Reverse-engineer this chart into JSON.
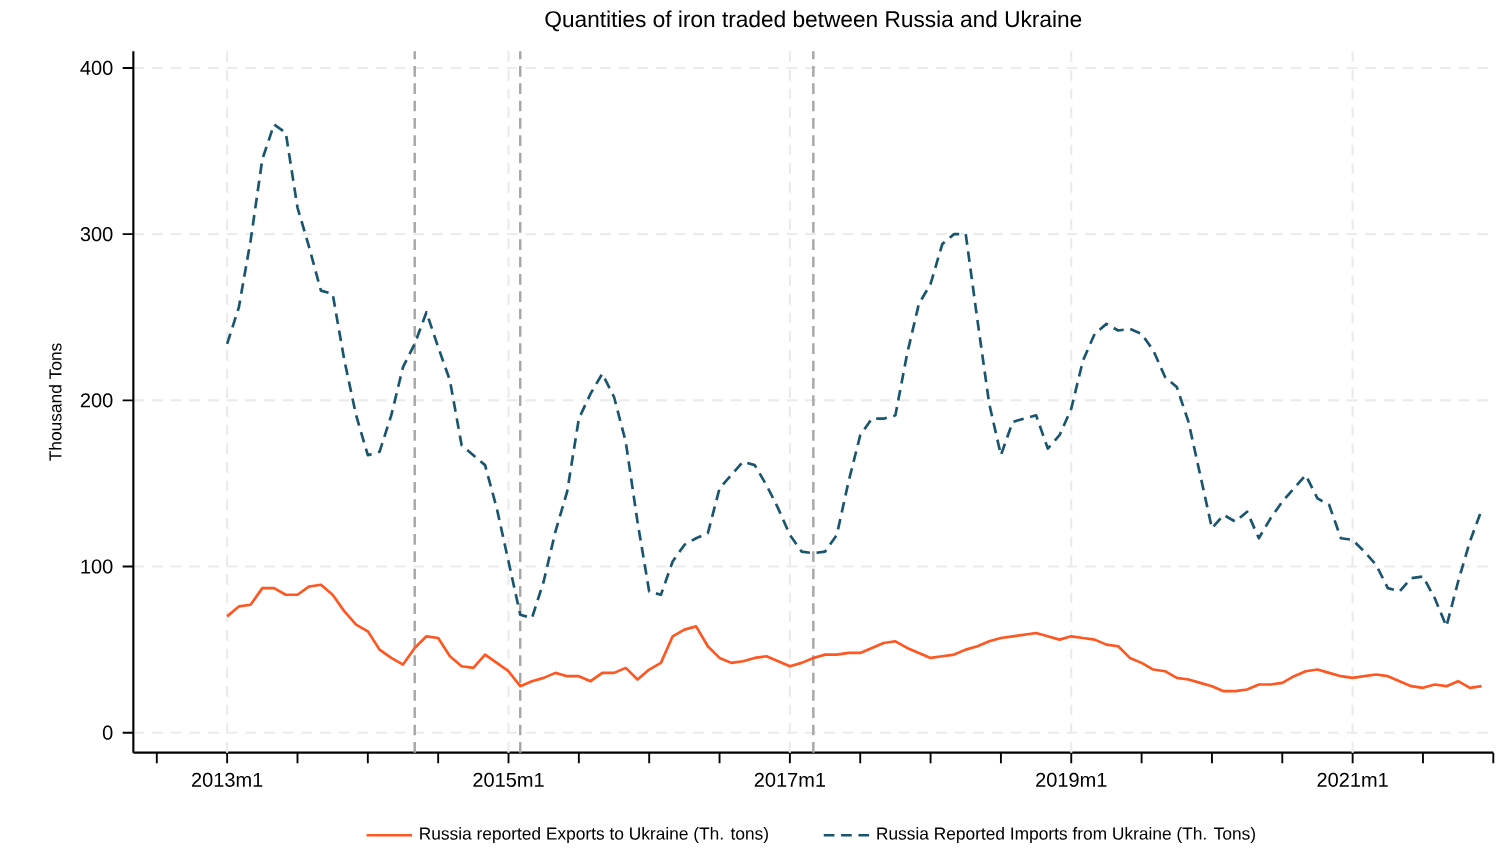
{
  "chart_data": {
    "type": "line",
    "title": "Quantities of iron traded between Russia and Ukraine",
    "ylabel": "Thousand Tons",
    "x": [
      "2013-01",
      "2013-02",
      "2013-03",
      "2013-04",
      "2013-05",
      "2013-06",
      "2013-07",
      "2013-08",
      "2013-09",
      "2013-10",
      "2013-11",
      "2013-12",
      "2014-01",
      "2014-02",
      "2014-03",
      "2014-04",
      "2014-05",
      "2014-06",
      "2014-07",
      "2014-08",
      "2014-09",
      "2014-10",
      "2014-11",
      "2014-12",
      "2015-01",
      "2015-02",
      "2015-03",
      "2015-04",
      "2015-05",
      "2015-06",
      "2015-07",
      "2015-08",
      "2015-09",
      "2015-10",
      "2015-11",
      "2015-12",
      "2016-01",
      "2016-02",
      "2016-03",
      "2016-04",
      "2016-05",
      "2016-06",
      "2016-07",
      "2016-08",
      "2016-09",
      "2016-10",
      "2016-11",
      "2016-12",
      "2017-01",
      "2017-02",
      "2017-03",
      "2017-04",
      "2017-05",
      "2017-06",
      "2017-07",
      "2017-08",
      "2017-09",
      "2017-10",
      "2017-11",
      "2017-12",
      "2018-01",
      "2018-02",
      "2018-03",
      "2018-04",
      "2018-05",
      "2018-06",
      "2018-07",
      "2018-08",
      "2018-09",
      "2018-10",
      "2018-11",
      "2018-12",
      "2019-01",
      "2019-02",
      "2019-03",
      "2019-04",
      "2019-05",
      "2019-06",
      "2019-07",
      "2019-08",
      "2019-09",
      "2019-10",
      "2019-11",
      "2019-12",
      "2020-01",
      "2020-02",
      "2020-03",
      "2020-04",
      "2020-05",
      "2020-06",
      "2020-07",
      "2020-08",
      "2020-09",
      "2020-10",
      "2020-11",
      "2020-12",
      "2021-01",
      "2021-02",
      "2021-03",
      "2021-04",
      "2021-05",
      "2021-06",
      "2021-07",
      "2021-08",
      "2021-09",
      "2021-10",
      "2021-11",
      "2021-12"
    ],
    "series": [
      {
        "name": "Russia reported Exports to Ukraine (Th. tons)",
        "color": "#ff5722",
        "line_style": "solid",
        "values": [
          70,
          76,
          77,
          87,
          87,
          83,
          83,
          88,
          89,
          83,
          73,
          65,
          61,
          50,
          45,
          41,
          51,
          58,
          57,
          46,
          40,
          39,
          47,
          42,
          37,
          28,
          31,
          33,
          36,
          34,
          34,
          31,
          36,
          36,
          39,
          32,
          38,
          42,
          58,
          62,
          64,
          52,
          45,
          42,
          43,
          45,
          46,
          43,
          40,
          42,
          45,
          47,
          47,
          48,
          48,
          51,
          54,
          55,
          51,
          48,
          45,
          46,
          47,
          50,
          52,
          55,
          57,
          58,
          59,
          60,
          58,
          56,
          58,
          57,
          56,
          53,
          52,
          45,
          42,
          38,
          37,
          33,
          32,
          30,
          28,
          25,
          25,
          26,
          29,
          29,
          30,
          34,
          37,
          38,
          36,
          34,
          33,
          34,
          35,
          34,
          31,
          28,
          27,
          29,
          28,
          31,
          27,
          28
        ]
      },
      {
        "name": "Russia Reported Imports from Ukraine (Th. Tons)",
        "color": "#1a5570",
        "line_style": "dashed",
        "values": [
          234,
          256,
          296,
          345,
          366,
          361,
          316,
          292,
          266,
          264,
          224,
          191,
          167,
          169,
          191,
          220,
          234,
          253,
          232,
          212,
          173,
          167,
          161,
          135,
          103,
          71,
          69,
          91,
          121,
          145,
          189,
          204,
          216,
          202,
          175,
          127,
          85,
          83,
          103,
          113,
          117,
          120,
          147,
          155,
          163,
          161,
          149,
          135,
          119,
          109,
          108,
          109,
          119,
          151,
          179,
          189,
          189,
          191,
          228,
          258,
          270,
          294,
          300,
          300,
          248,
          198,
          167,
          187,
          189,
          191,
          171,
          179,
          195,
          224,
          240,
          246,
          242,
          243,
          240,
          230,
          214,
          208,
          187,
          155,
          123,
          131,
          127,
          133,
          117,
          129,
          139,
          147,
          155,
          141,
          137,
          117,
          116,
          109,
          101,
          87,
          85,
          93,
          94,
          81,
          64,
          91,
          115,
          134
        ]
      }
    ],
    "xlim": [
      "2012-05",
      "2022-01"
    ],
    "xticks": [
      {
        "value": "2012-07",
        "label": null
      },
      {
        "value": "2013-01",
        "label": "2013m1"
      },
      {
        "value": "2013-07",
        "label": null
      },
      {
        "value": "2014-01",
        "label": null
      },
      {
        "value": "2014-07",
        "label": null
      },
      {
        "value": "2015-01",
        "label": "2015m1"
      },
      {
        "value": "2015-07",
        "label": null
      },
      {
        "value": "2016-01",
        "label": null
      },
      {
        "value": "2016-07",
        "label": null
      },
      {
        "value": "2017-01",
        "label": "2017m1"
      },
      {
        "value": "2017-07",
        "label": null
      },
      {
        "value": "2018-01",
        "label": null
      },
      {
        "value": "2018-07",
        "label": null
      },
      {
        "value": "2019-01",
        "label": "2019m1"
      },
      {
        "value": "2019-07",
        "label": null
      },
      {
        "value": "2020-01",
        "label": null
      },
      {
        "value": "2020-07",
        "label": null
      },
      {
        "value": "2021-01",
        "label": "2021m1"
      },
      {
        "value": "2021-07",
        "label": null
      },
      {
        "value": "2022-01",
        "label": null
      }
    ],
    "ylim": [
      -12,
      410
    ],
    "yticks": [
      0,
      100,
      200,
      300,
      400
    ],
    "grid": true,
    "legend": "bottom",
    "ref_lines": [
      {
        "axis": "x",
        "value": "2014-05",
        "color": "#a6a6a6",
        "line_style": "dashed"
      },
      {
        "axis": "x",
        "value": "2015-02",
        "color": "#a6a6a6",
        "line_style": "dashed"
      },
      {
        "axis": "x",
        "value": "2017-03",
        "color": "#a6a6a6",
        "line_style": "dashed"
      }
    ]
  }
}
